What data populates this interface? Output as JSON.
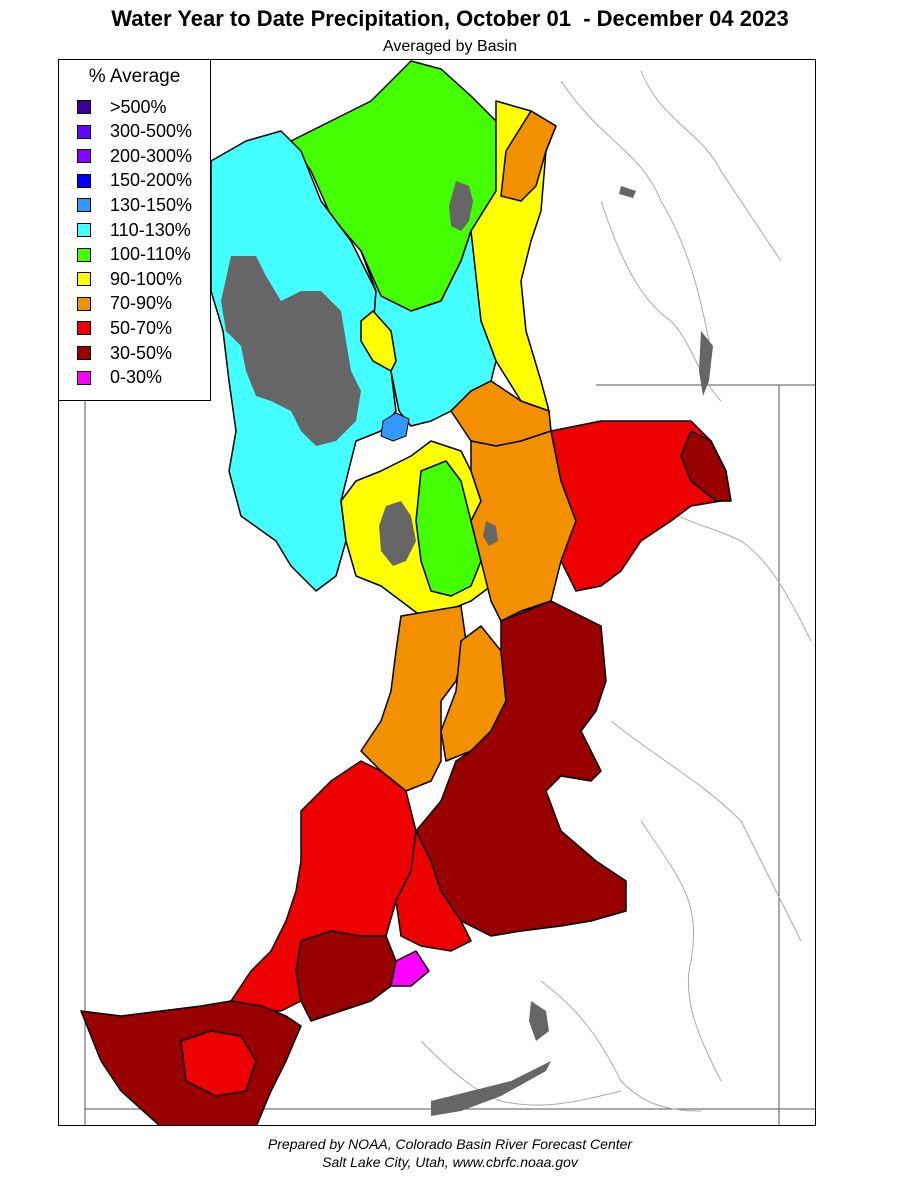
{
  "title": "Water Year to Date Precipitation, October 01  - December 04 2023",
  "subtitle": "Averaged by Basin",
  "legend": {
    "title": "% Average",
    "items": [
      {
        "label": ">500%",
        "color": "#3d0099"
      },
      {
        "label": "300-500%",
        "color": "#6600ff"
      },
      {
        "label": "200-300%",
        "color": "#8800ff"
      },
      {
        "label": "150-200%",
        "color": "#0000ff"
      },
      {
        "label": "130-150%",
        "color": "#3399ff"
      },
      {
        "label": "110-130%",
        "color": "#44ffff"
      },
      {
        "label": "100-110%",
        "color": "#44ff00"
      },
      {
        "label": "90-100%",
        "color": "#ffff00"
      },
      {
        "label": "70-90%",
        "color": "#f39000"
      },
      {
        "label": "50-70%",
        "color": "#ee0000"
      },
      {
        "label": "30-50%",
        "color": "#990000"
      },
      {
        "label": "0-30%",
        "color": "#ff00ff"
      }
    ]
  },
  "colors": {
    "lake": "#666666",
    "boundary": "#000000",
    "state_line": "#555555",
    "river": "#aaaaaa"
  },
  "footer": {
    "line1": "Prepared by NOAA, Colorado Basin River Forecast Center",
    "line2": "Salt Lake City, Utah, www.cbrfc.noaa.gov"
  }
}
